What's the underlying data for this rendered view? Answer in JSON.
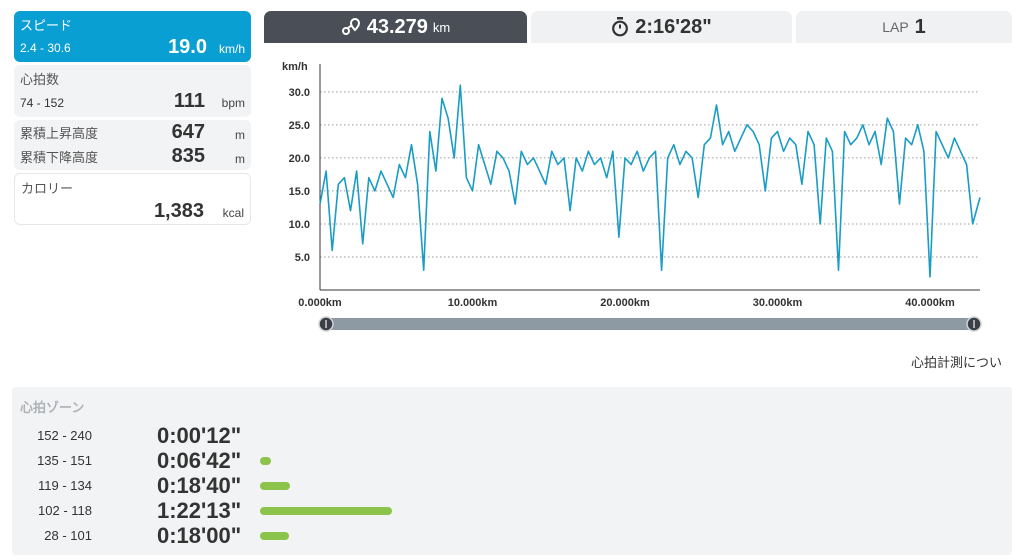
{
  "metrics": {
    "speed": {
      "label": "スピード",
      "range": "2.4 - 30.6",
      "value": "19.0",
      "unit": "km/h"
    },
    "heart_rate": {
      "label": "心拍数",
      "range": "74 - 152",
      "value": "111",
      "unit": "bpm"
    },
    "elevation_gain": {
      "label": "累積上昇高度",
      "value": "647",
      "unit": "m"
    },
    "elevation_loss": {
      "label": "累積下降高度",
      "value": "835",
      "unit": "m"
    },
    "calories": {
      "label": "カロリー",
      "value": "1,383",
      "unit": "kcal"
    }
  },
  "tabs": {
    "distance": {
      "value": "43.279",
      "unit": "km",
      "icon": "route-icon"
    },
    "time": {
      "value": "2:16'28\"",
      "icon": "stopwatch-icon"
    },
    "lap": {
      "label": "LAP",
      "value": "1"
    }
  },
  "heart_note": "心拍計測につい",
  "zones": {
    "title": "心拍ゾーン",
    "rows": [
      {
        "range": "152 - 240",
        "time": "0:00'12\"",
        "minutes": 0.2
      },
      {
        "range": "135 - 151",
        "time": "0:06'42\"",
        "minutes": 6.7
      },
      {
        "range": "119 - 134",
        "time": "0:18'40\"",
        "minutes": 18.7
      },
      {
        "range": "102 - 118",
        "time": "1:22'13\"",
        "minutes": 82.2
      },
      {
        "range": "28 - 101",
        "time": "0:18'00\"",
        "minutes": 18.0
      }
    ]
  },
  "colors": {
    "accent": "#0a9fd3",
    "line": "#1a9cc5",
    "tab_active": "#4a4f57",
    "zone_bar": "#8cc34a"
  },
  "chart_data": {
    "type": "line",
    "ylabel": "km/h",
    "yticks": [
      "5.0",
      "10.0",
      "15.0",
      "20.0",
      "25.0",
      "30.0"
    ],
    "xticks": [
      "0.000km",
      "10.000km",
      "20.000km",
      "30.000km",
      "40.000km"
    ],
    "xlim": [
      0,
      43.279
    ],
    "ylim": [
      0,
      33
    ],
    "grid": true,
    "series": [
      {
        "x": [
          0,
          0.4,
          0.8,
          1.2,
          1.6,
          2.0,
          2.4,
          2.8,
          3.2,
          3.6,
          4.0,
          4.4,
          4.8,
          5.2,
          5.6,
          6.0,
          6.4,
          6.8,
          7.2,
          7.6,
          8.0,
          8.4,
          8.8,
          9.2,
          9.6,
          10.0,
          10.4,
          10.8,
          11.2,
          11.6,
          12.0,
          12.4,
          12.8,
          13.2,
          13.6,
          14.0,
          14.4,
          14.8,
          15.2,
          15.6,
          16.0,
          16.4,
          16.8,
          17.2,
          17.6,
          18.0,
          18.4,
          18.8,
          19.2,
          19.6,
          20.0,
          20.4,
          20.8,
          21.2,
          21.6,
          22.0,
          22.4,
          22.8,
          23.2,
          23.6,
          24.0,
          24.4,
          24.8,
          25.2,
          25.6,
          26.0,
          26.4,
          26.8,
          27.2,
          27.6,
          28.0,
          28.4,
          28.8,
          29.2,
          29.6,
          30.0,
          30.4,
          30.8,
          31.2,
          31.6,
          32.0,
          32.4,
          32.8,
          33.2,
          33.6,
          34.0,
          34.4,
          34.8,
          35.2,
          35.6,
          36.0,
          36.4,
          36.8,
          37.2,
          37.6,
          38.0,
          38.4,
          38.8,
          39.2,
          39.6,
          40.0,
          40.4,
          40.8,
          41.2,
          41.6,
          42.0,
          42.4,
          42.8,
          43.279
        ],
        "values": [
          13,
          18,
          6,
          16,
          17,
          12,
          18,
          7,
          17,
          15,
          18,
          16,
          14,
          19,
          17,
          22,
          16,
          3,
          24,
          18,
          29,
          26,
          20,
          31,
          17,
          15,
          22,
          19,
          16,
          21,
          20,
          18,
          13,
          21,
          19,
          20,
          18,
          16,
          21,
          19,
          20,
          12,
          20,
          18,
          21,
          19,
          20,
          17,
          21,
          8,
          20,
          19,
          21,
          18,
          20,
          21,
          3,
          20,
          22,
          19,
          21,
          20,
          14,
          22,
          23,
          28,
          22,
          24,
          21,
          23,
          25,
          24,
          22,
          15,
          23,
          24,
          21,
          23,
          22,
          16,
          24,
          22,
          10,
          23,
          21,
          3,
          24,
          22,
          23,
          25,
          22,
          24,
          19,
          26,
          24,
          13,
          23,
          22,
          25,
          21,
          2,
          24,
          22,
          20,
          23,
          21,
          19,
          10,
          14
        ]
      }
    ]
  }
}
